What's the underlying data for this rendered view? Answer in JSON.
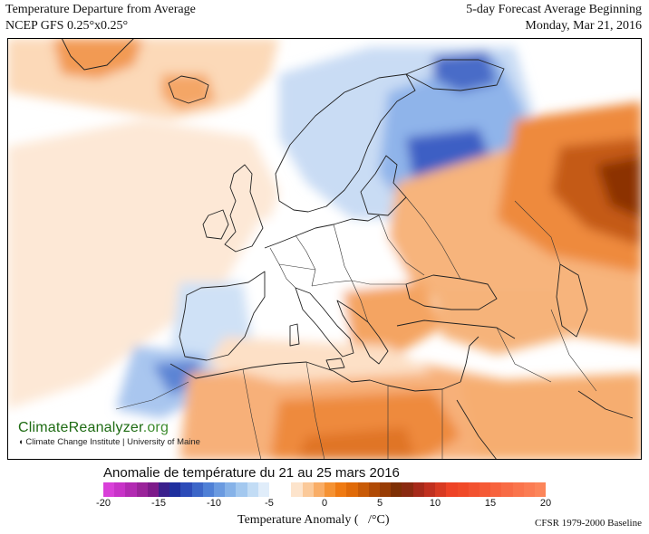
{
  "header": {
    "title_line1": "Temperature Departure from Average",
    "title_line2": "NCEP GFS 0.25°x0.25°",
    "forecast_line1": "5-day Forecast Average Beginning",
    "forecast_line2": "Monday, Mar 21, 2016"
  },
  "watermark": {
    "logo_main": "ClimateReanalyzer",
    "logo_ext": ".org",
    "subtitle": "Climate Change Institute | University of Maine"
  },
  "caption": "Anomalie de température du 21 au 25 mars 2016",
  "colorbar": {
    "title": "Temperature Anomaly (   /°C)",
    "baseline": "CFSR 1979-2000 Baseline",
    "tick_labels": [
      "-20",
      "-15",
      "-10",
      "-5",
      "0",
      "5",
      "10",
      "15",
      "20"
    ],
    "tick_values": [
      -20,
      -15,
      -10,
      -5,
      0,
      5,
      10,
      15,
      20
    ],
    "min": -20,
    "max": 20,
    "colors": [
      "#d940d9",
      "#c833c8",
      "#b22ab2",
      "#9a239a",
      "#7d1a8a",
      "#3a1f8c",
      "#1f2f9e",
      "#2c4bb8",
      "#3c66c8",
      "#4f80d6",
      "#6a9ae0",
      "#86b2e8",
      "#a3c8ef",
      "#c2dcf5",
      "#e0edfa",
      "#ffffff",
      "#ffffff",
      "#fde4cc",
      "#fbc999",
      "#f9ad66",
      "#f59233",
      "#ef7a12",
      "#e06a08",
      "#c85a06",
      "#b04a05",
      "#983c04",
      "#7e2f04",
      "#8a2a10",
      "#a62a1a",
      "#c0301f",
      "#d83a22",
      "#ee4326",
      "#f04a28",
      "#f25230",
      "#f55a36",
      "#f7633e",
      "#f86b45",
      "#fa744c",
      "#fb7c53",
      "#fc855a"
    ]
  },
  "map": {
    "region": "Europe",
    "colors": {
      "sea": "#ffffff",
      "light_orange": "#fcdcc0",
      "orange": "#f6b27a",
      "deep_orange": "#ee8a3e",
      "brown": "#c45a12",
      "dark_brown": "#8c3006",
      "light_blue": "#cfe0f5",
      "blue": "#8fb6ea",
      "dark_blue": "#3d5fc4",
      "navy": "#1f2f8a",
      "land_border": "#222222"
    }
  }
}
